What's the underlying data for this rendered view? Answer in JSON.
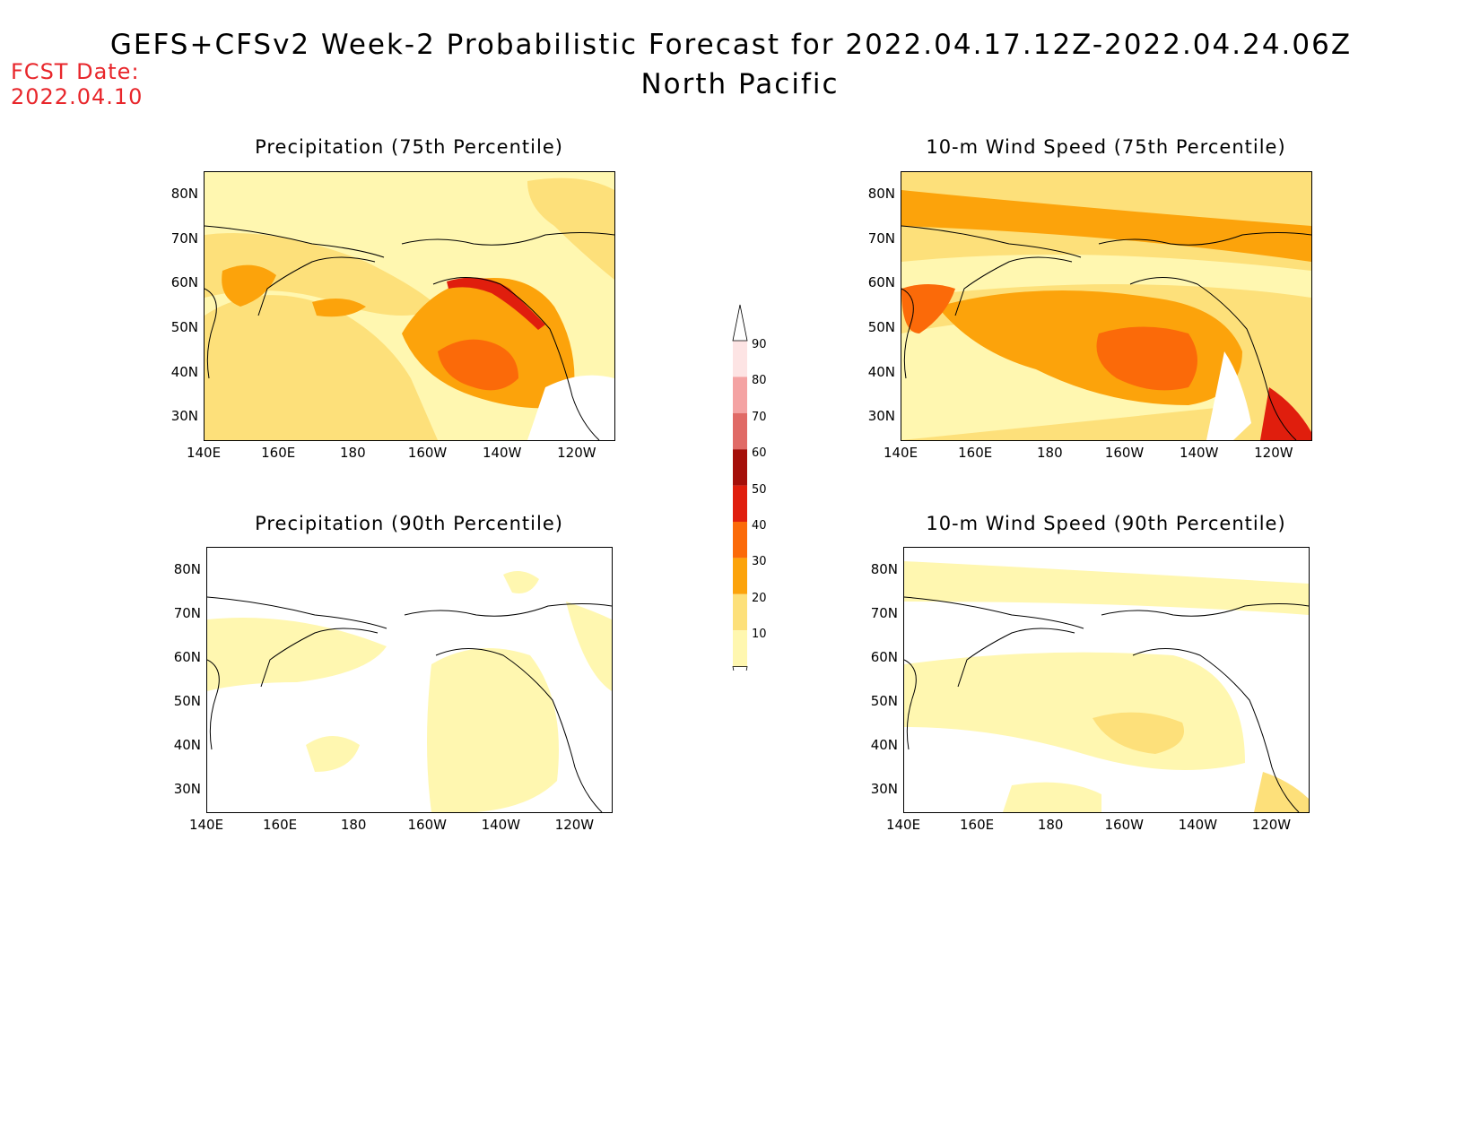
{
  "fcst_date": {
    "line1": "FCST Date:",
    "line2": "2022.04.10"
  },
  "title": "GEFS+CFSv2 Week-2 Probabilistic Forecast for 2022.04.17.12Z-2022.04.24.06Z",
  "subtitle": "North Pacific",
  "panels": [
    {
      "title": "Precipitation (75th Percentile)"
    },
    {
      "title": "10-m Wind Speed (75th Percentile)"
    },
    {
      "title": "Precipitation (90th Percentile)"
    },
    {
      "title": "10-m Wind Speed (90th Percentile)"
    }
  ],
  "axes": {
    "lat_labels": [
      "80N",
      "70N",
      "60N",
      "50N",
      "40N",
      "30N"
    ],
    "lon_labels": [
      "140E",
      "160E",
      "180",
      "160W",
      "140W",
      "120W"
    ]
  },
  "colorbar": {
    "labels": [
      "90",
      "80",
      "70",
      "60",
      "50",
      "40",
      "30",
      "20",
      "10"
    ],
    "colors": [
      "#fde4e4",
      "#f4a3a3",
      "#e06a66",
      "#a50f0a",
      "#e01e0d",
      "#fb6a09",
      "#fca30b",
      "#fde07a",
      "#fff7b0"
    ]
  },
  "colors": {
    "fcst_text": "#e8262b",
    "level10": "#fff7b0",
    "level20": "#fde07a",
    "level30": "#fca30b",
    "level40": "#fb6a09",
    "level50": "#e01e0d"
  }
}
